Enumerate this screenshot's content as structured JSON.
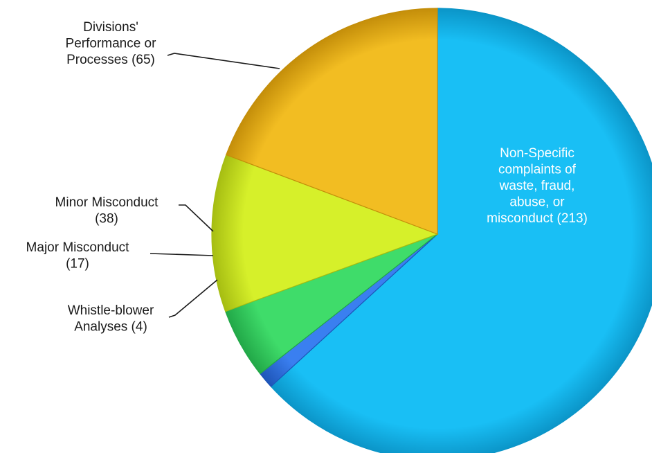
{
  "chart_data": {
    "type": "pie",
    "title": "",
    "slices": [
      {
        "label_lines": [
          "Non-Specific",
          "complaints of",
          "waste, fraud,",
          "abuse, or",
          "misconduct (213)"
        ],
        "value": 213,
        "color": "#19bff5",
        "shade": "#0b95c8"
      },
      {
        "label_lines": [
          "Whistle-blower",
          "Analyses (4)"
        ],
        "value": 4,
        "color": "#3a7ff0",
        "shade": "#1e55b8"
      },
      {
        "label_lines": [
          "Major Misconduct",
          "(17)"
        ],
        "value": 17,
        "color": "#3fdc6a",
        "shade": "#22a848"
      },
      {
        "label_lines": [
          "Minor Misconduct",
          "(38)"
        ],
        "value": 38,
        "color": "#d6f02a",
        "shade": "#a6bd12"
      },
      {
        "label_lines": [
          "Divisions'",
          "Performance or",
          "Processes (65)"
        ],
        "value": 65,
        "color": "#f2bd22",
        "shade": "#c48e0a"
      }
    ],
    "start": "12 o'clock",
    "direction": "clockwise",
    "legend": "none"
  }
}
